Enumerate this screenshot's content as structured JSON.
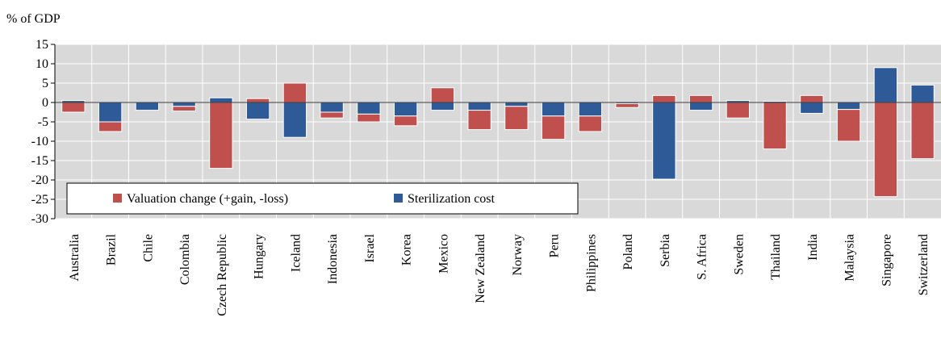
{
  "chart_data": {
    "type": "stacked_bar",
    "y_label": "% of GDP",
    "categories": [
      "Australia",
      "Brazil",
      "Chile",
      "Colombia",
      "Czech Republic",
      "Hungary",
      "Iceland",
      "Indonesia",
      "Israel",
      "Korea",
      "Mexico",
      "New Zealand",
      "Norway",
      "Peru",
      "Philippines",
      "Poland",
      "Serbia",
      "S. Africa",
      "Sweden",
      "Thailand",
      "India",
      "Malaysia",
      "Singapore",
      "Switzerland"
    ],
    "series": [
      {
        "name": "Valuation change (+gain, -loss)",
        "color": "#c0504d",
        "values": [
          -2.5,
          -2.5,
          0,
          -1.2,
          -17,
          1,
          5,
          -1.5,
          -2,
          -2.5,
          3.8,
          -5,
          -6,
          -6,
          -4,
          -1,
          1.8,
          1.8,
          -4,
          -12,
          1.8,
          -8.2,
          -24.3,
          -14.5
        ]
      },
      {
        "name": "Sterilization cost",
        "color": "#2e5b98",
        "values": [
          0.5,
          -5,
          -2,
          -1,
          1.2,
          -4.3,
          -9,
          -2.5,
          -3,
          -3.5,
          -2,
          -2,
          -1,
          -3.5,
          -3.5,
          -0.3,
          -19.8,
          -2,
          0.5,
          0.3,
          -2.8,
          -1.8,
          9,
          4.5
        ]
      }
    ],
    "stack_order": [
      1,
      0
    ],
    "ylim": [
      -30,
      15
    ],
    "yticks": [
      -30,
      -25,
      -20,
      -15,
      -10,
      -5,
      0,
      5,
      10,
      15
    ],
    "grid": true
  }
}
